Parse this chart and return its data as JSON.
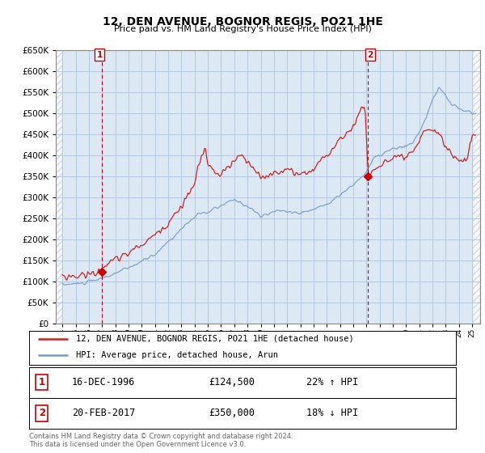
{
  "title": "12, DEN AVENUE, BOGNOR REGIS, PO21 1HE",
  "subtitle": "Price paid vs. HM Land Registry's House Price Index (HPI)",
  "legend_line1": "12, DEN AVENUE, BOGNOR REGIS, PO21 1HE (detached house)",
  "legend_line2": "HPI: Average price, detached house, Arun",
  "annotation1_label": "1",
  "annotation1_date": "16-DEC-1996",
  "annotation1_price": "£124,500",
  "annotation1_hpi": "22% ↑ HPI",
  "annotation1_year": 1996.96,
  "annotation1_value": 124500,
  "annotation2_label": "2",
  "annotation2_date": "20-FEB-2017",
  "annotation2_price": "£350,000",
  "annotation2_hpi": "18% ↓ HPI",
  "annotation2_year": 2017.12,
  "annotation2_value": 350000,
  "footer": "Contains HM Land Registry data © Crown copyright and database right 2024.\nThis data is licensed under the Open Government Licence v3.0.",
  "hpi_color": "#7799cc",
  "price_color": "#cc2222",
  "annotation_color": "#cc0000",
  "ylim": [
    0,
    650000
  ],
  "background_color": "#ffffff",
  "plot_bg_color": "#dde8f5",
  "grid_color": "#b0c4de"
}
